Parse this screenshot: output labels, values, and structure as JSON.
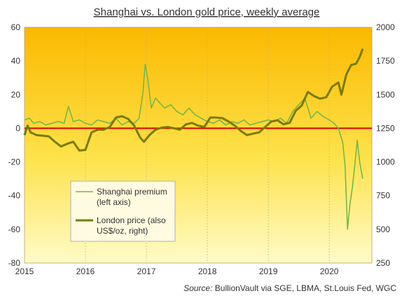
{
  "chart_data": {
    "type": "line",
    "title": "Shanghai vs. London gold price, weekly average",
    "source_label": "Source:",
    "source_text": "BullionVault via SGE, LBMA, St.Louis Fed, WGC",
    "x_ticks": [
      "2015",
      "2016",
      "2017",
      "2018",
      "2019",
      "2020"
    ],
    "left_axis": {
      "ylim": [
        -80,
        60
      ],
      "ticks": [
        "60",
        "40",
        "20",
        "0",
        "-20",
        "-40",
        "-60",
        "-80"
      ]
    },
    "right_axis": {
      "ylim": [
        250,
        2000
      ],
      "ticks": [
        "2000",
        "1750",
        "1500",
        "1250",
        "1000",
        "750",
        "500",
        "250"
      ]
    },
    "zero_line_color": "#e00000",
    "series": [
      {
        "name": "Shanghai premium\n(left axis)",
        "axis": "left",
        "color": "#7ab648",
        "points": [
          [
            2015.0,
            5
          ],
          [
            2015.08,
            6
          ],
          [
            2015.15,
            3
          ],
          [
            2015.25,
            4
          ],
          [
            2015.35,
            2
          ],
          [
            2015.45,
            3
          ],
          [
            2015.55,
            4
          ],
          [
            2015.65,
            3
          ],
          [
            2015.72,
            13
          ],
          [
            2015.8,
            4
          ],
          [
            2015.9,
            5
          ],
          [
            2016.0,
            3
          ],
          [
            2016.1,
            2
          ],
          [
            2016.2,
            5
          ],
          [
            2016.3,
            4
          ],
          [
            2016.4,
            3
          ],
          [
            2016.5,
            6
          ],
          [
            2016.6,
            2
          ],
          [
            2016.7,
            4
          ],
          [
            2016.8,
            3
          ],
          [
            2016.88,
            6
          ],
          [
            2016.94,
            20
          ],
          [
            2016.98,
            38
          ],
          [
            2017.02,
            30
          ],
          [
            2017.08,
            12
          ],
          [
            2017.15,
            18
          ],
          [
            2017.22,
            15
          ],
          [
            2017.3,
            12
          ],
          [
            2017.4,
            14
          ],
          [
            2017.5,
            10
          ],
          [
            2017.6,
            8
          ],
          [
            2017.7,
            12
          ],
          [
            2017.8,
            8
          ],
          [
            2017.9,
            6
          ],
          [
            2018.0,
            4
          ],
          [
            2018.1,
            3
          ],
          [
            2018.2,
            5
          ],
          [
            2018.3,
            2
          ],
          [
            2018.4,
            4
          ],
          [
            2018.5,
            3
          ],
          [
            2018.6,
            5
          ],
          [
            2018.7,
            2
          ],
          [
            2018.8,
            3
          ],
          [
            2018.9,
            4
          ],
          [
            2019.0,
            5
          ],
          [
            2019.1,
            4
          ],
          [
            2019.2,
            6
          ],
          [
            2019.3,
            3
          ],
          [
            2019.4,
            10
          ],
          [
            2019.5,
            14
          ],
          [
            2019.6,
            18
          ],
          [
            2019.7,
            6
          ],
          [
            2019.8,
            10
          ],
          [
            2019.9,
            7
          ],
          [
            2020.0,
            5
          ],
          [
            2020.08,
            3
          ],
          [
            2020.15,
            0
          ],
          [
            2020.22,
            -8
          ],
          [
            2020.26,
            -22
          ],
          [
            2020.3,
            -60
          ],
          [
            2020.34,
            -45
          ],
          [
            2020.38,
            -35
          ],
          [
            2020.42,
            -22
          ],
          [
            2020.46,
            -7
          ],
          [
            2020.5,
            -20
          ],
          [
            2020.55,
            -30
          ]
        ]
      },
      {
        "name": "London price (also\nUS$/oz, right)",
        "axis": "right",
        "color": "#7a7a00",
        "points": [
          [
            2015.0,
            1200
          ],
          [
            2015.05,
            1270
          ],
          [
            2015.1,
            1220
          ],
          [
            2015.2,
            1200
          ],
          [
            2015.3,
            1195
          ],
          [
            2015.4,
            1190
          ],
          [
            2015.5,
            1150
          ],
          [
            2015.6,
            1115
          ],
          [
            2015.7,
            1135
          ],
          [
            2015.8,
            1150
          ],
          [
            2015.9,
            1085
          ],
          [
            2016.0,
            1090
          ],
          [
            2016.1,
            1220
          ],
          [
            2016.2,
            1240
          ],
          [
            2016.3,
            1240
          ],
          [
            2016.4,
            1260
          ],
          [
            2016.5,
            1330
          ],
          [
            2016.6,
            1340
          ],
          [
            2016.7,
            1320
          ],
          [
            2016.8,
            1270
          ],
          [
            2016.9,
            1180
          ],
          [
            2016.96,
            1150
          ],
          [
            2017.05,
            1200
          ],
          [
            2017.15,
            1240
          ],
          [
            2017.25,
            1255
          ],
          [
            2017.35,
            1260
          ],
          [
            2017.45,
            1250
          ],
          [
            2017.55,
            1240
          ],
          [
            2017.65,
            1280
          ],
          [
            2017.75,
            1290
          ],
          [
            2017.85,
            1270
          ],
          [
            2017.95,
            1260
          ],
          [
            2018.05,
            1330
          ],
          [
            2018.15,
            1330
          ],
          [
            2018.25,
            1325
          ],
          [
            2018.35,
            1300
          ],
          [
            2018.45,
            1270
          ],
          [
            2018.55,
            1230
          ],
          [
            2018.65,
            1200
          ],
          [
            2018.75,
            1210
          ],
          [
            2018.85,
            1220
          ],
          [
            2018.95,
            1260
          ],
          [
            2019.05,
            1300
          ],
          [
            2019.15,
            1310
          ],
          [
            2019.25,
            1280
          ],
          [
            2019.35,
            1290
          ],
          [
            2019.45,
            1380
          ],
          [
            2019.55,
            1420
          ],
          [
            2019.65,
            1520
          ],
          [
            2019.75,
            1490
          ],
          [
            2019.85,
            1470
          ],
          [
            2019.95,
            1480
          ],
          [
            2020.05,
            1560
          ],
          [
            2020.15,
            1590
          ],
          [
            2020.2,
            1500
          ],
          [
            2020.28,
            1650
          ],
          [
            2020.36,
            1720
          ],
          [
            2020.44,
            1730
          ],
          [
            2020.5,
            1780
          ],
          [
            2020.55,
            1840
          ]
        ]
      }
    ]
  }
}
